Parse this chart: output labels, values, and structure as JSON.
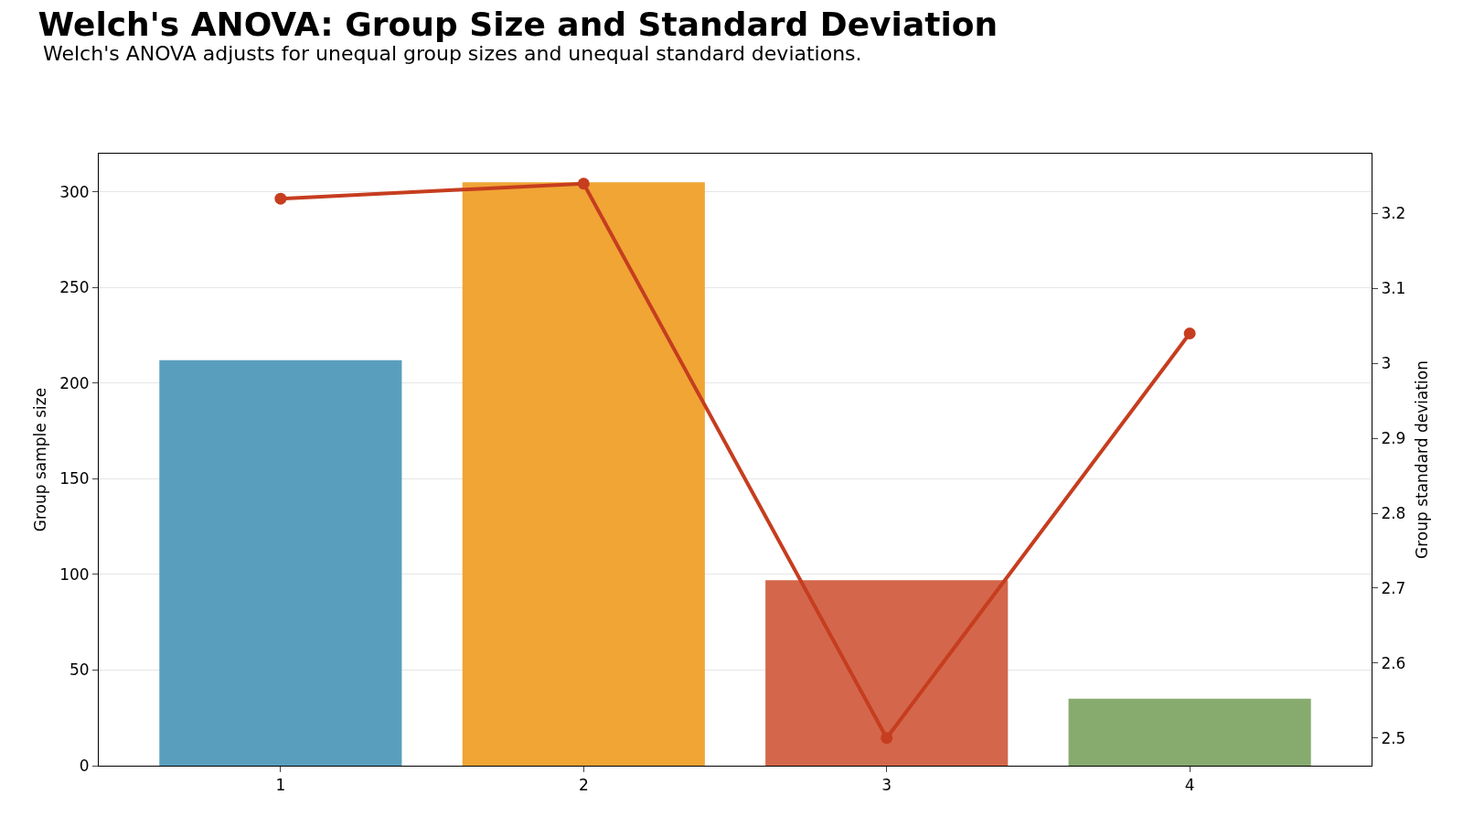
{
  "chart_data": {
    "type": "bar",
    "title": "Welch's ANOVA: Group Size and Standard Deviation",
    "subtitle": "Welch's ANOVA adjusts for unequal group sizes and unequal standard deviations.",
    "categories": [
      "1",
      "2",
      "3",
      "4"
    ],
    "ylabel": "Group sample size",
    "y2label": "Group standard deviation",
    "series": [
      {
        "colors": [
          "#5a9ebd",
          "#f0a535",
          "#d4664b",
          "#87ab6e"
        ],
        "values": [
          212,
          305,
          97,
          35
        ]
      },
      {
        "type": "line",
        "axis": "y2",
        "color": "#c63d1f",
        "marker": "circle",
        "line_style": "solid",
        "values": [
          3.22,
          3.24,
          2.5,
          3.04
        ]
      }
    ],
    "ylim": [
      0,
      320
    ],
    "yticks": [
      0,
      50,
      100,
      150,
      200,
      250,
      300
    ],
    "y2lim": [
      2.463,
      3.28
    ],
    "y2ticks": [
      2.5,
      2.6,
      2.7,
      2.8,
      2.9,
      3.0,
      3.1,
      3.2
    ],
    "grid": "y"
  }
}
